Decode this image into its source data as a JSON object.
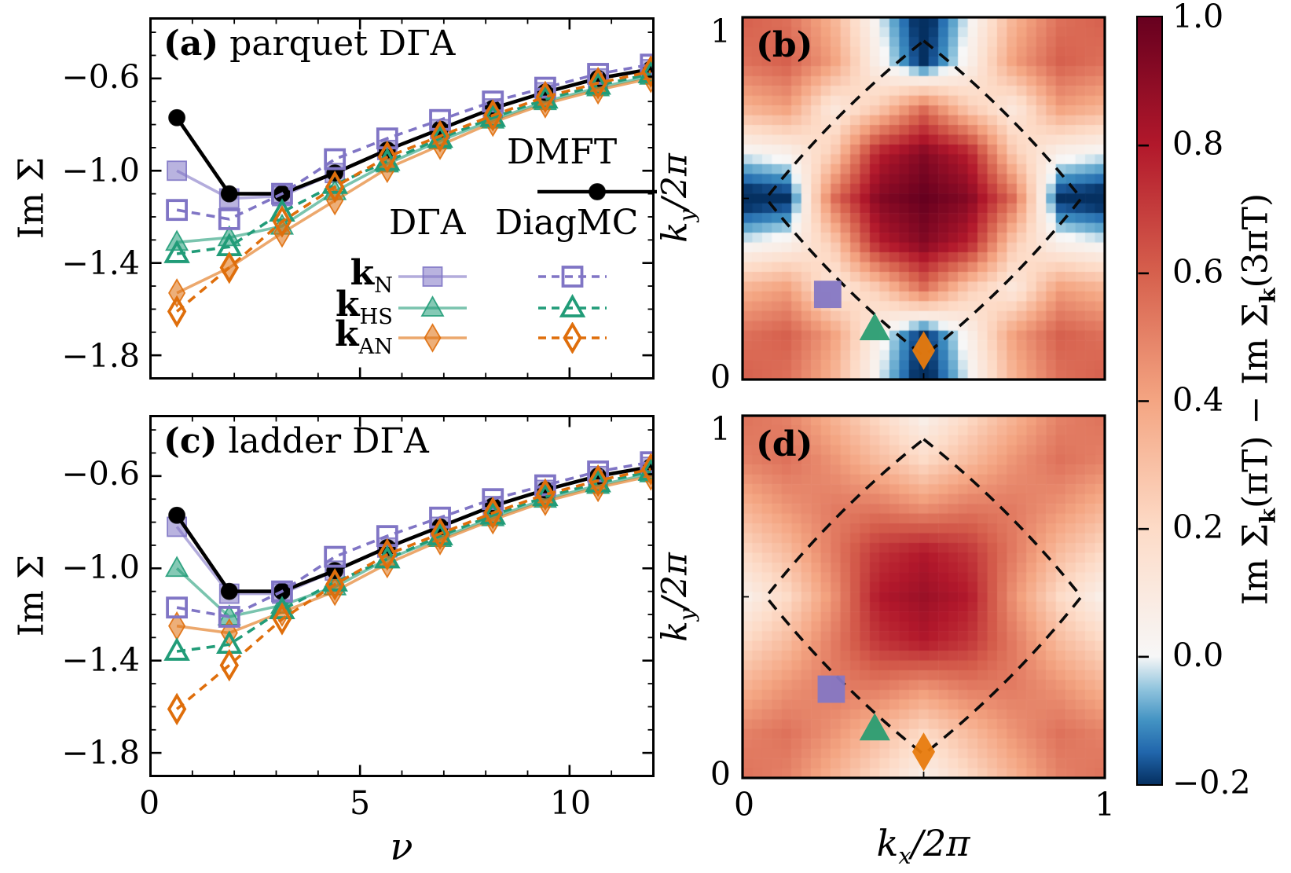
{
  "panel_a": {
    "tag": "(a)",
    "title": "parquet DΓA"
  },
  "panel_b": {
    "tag": "(b)"
  },
  "panel_c": {
    "tag": "(c)",
    "title": "ladder DΓA"
  },
  "panel_d": {
    "tag": "(d)"
  },
  "axes": {
    "im_sigma_label": "Im Σ",
    "nu_label": "ν",
    "k_base": "k",
    "ky_sub": "y",
    "kx_sub": "x",
    "k_denom": "/2π",
    "a_yticks": [
      "−0.6",
      "−1.0",
      "−1.4",
      "−1.8"
    ],
    "c_yticks": [
      "−0.6",
      "−1.0",
      "−1.4",
      "−1.8"
    ],
    "c_xticks": [
      "0",
      "5",
      "10"
    ],
    "b_ytick_top": "1",
    "b_ytick_bottom": "0",
    "d_ytick_top": "1",
    "d_ytick_bottom": "0",
    "d_xtick_left": "0",
    "d_xtick_right": "1"
  },
  "legend": {
    "dmft": "DMFT",
    "dga": "DΓA",
    "diagmc": "DiagMC",
    "rows": [
      {
        "base": "k",
        "sub": "N"
      },
      {
        "base": "k",
        "sub": "HS"
      },
      {
        "base": "k",
        "sub": "AN"
      }
    ]
  },
  "colorbar": {
    "ticks": [
      "1.0",
      "0.8",
      "0.6",
      "0.4",
      "0.2",
      "0.0",
      "−0.2"
    ],
    "tick_values": [
      1.0,
      0.8,
      0.6,
      0.4,
      0.2,
      0.0,
      -0.2
    ],
    "clim": [
      -0.2,
      1.0
    ],
    "label_parts": {
      "l1": "Im Σ",
      "s1": "k",
      "l2": "(πT) − Im Σ",
      "s2": "k",
      "l3": "(3πT)"
    }
  },
  "colors": {
    "purple": "#8075c5",
    "green": "#219c78",
    "orange": "#df6e0b",
    "black": "#000000",
    "marker_purple": "#8577c4",
    "marker_green": "#2a9d72",
    "marker_orange": "#e87b0e"
  },
  "chart_data": [
    {
      "id": "a",
      "type": "line",
      "title": "(a) parquet DΓA",
      "xlabel": "ν",
      "ylabel": "Im Σ",
      "xlim": [
        0,
        12
      ],
      "ylim": [
        -1.9,
        -0.34
      ],
      "xticks": [
        0,
        5,
        10
      ],
      "yticks": [
        -0.6,
        -1.0,
        -1.4,
        -1.8
      ],
      "x": [
        0.63,
        1.88,
        3.14,
        4.4,
        5.65,
        6.91,
        8.17,
        9.42,
        10.68,
        11.94
      ],
      "series": [
        {
          "name": "DMFT",
          "style": "solid",
          "marker": "circle",
          "fill": "filled",
          "color": "#000000",
          "values": [
            -0.77,
            -1.1,
            -1.1,
            -1.01,
            -0.91,
            -0.82,
            -0.73,
            -0.66,
            -0.6,
            -0.56
          ]
        },
        {
          "name": "k_N DΓA",
          "style": "solid",
          "marker": "square",
          "fill": "filled",
          "color": "#8075c5",
          "values": [
            -1.0,
            -1.12,
            -1.11,
            -1.01,
            -0.91,
            -0.82,
            -0.73,
            -0.66,
            -0.6,
            -0.56
          ]
        },
        {
          "name": "k_HS DΓA",
          "style": "solid",
          "marker": "triangle",
          "fill": "filled",
          "color": "#219c78",
          "values": [
            -1.31,
            -1.29,
            -1.24,
            -1.09,
            -0.97,
            -0.87,
            -0.78,
            -0.7,
            -0.64,
            -0.59
          ]
        },
        {
          "name": "k_AN DΓA",
          "style": "solid",
          "marker": "diamond",
          "fill": "filled",
          "color": "#df6e0b",
          "values": [
            -1.53,
            -1.42,
            -1.27,
            -1.13,
            -0.99,
            -0.89,
            -0.79,
            -0.71,
            -0.65,
            -0.6
          ]
        },
        {
          "name": "k_N DiagMC",
          "style": "dashed",
          "marker": "square",
          "fill": "open",
          "color": "#8075c5",
          "values": [
            -1.17,
            -1.21,
            -1.1,
            -0.95,
            -0.86,
            -0.78,
            -0.7,
            -0.64,
            -0.58,
            -0.54
          ]
        },
        {
          "name": "k_HS DiagMC",
          "style": "dashed",
          "marker": "triangle",
          "fill": "open",
          "color": "#219c78",
          "values": [
            -1.36,
            -1.33,
            -1.18,
            -1.06,
            -0.96,
            -0.86,
            -0.77,
            -0.69,
            -0.63,
            -0.58
          ]
        },
        {
          "name": "k_AN DiagMC",
          "style": "dashed",
          "marker": "diamond",
          "fill": "open",
          "color": "#df6e0b",
          "values": [
            -1.61,
            -1.42,
            -1.22,
            -1.07,
            -0.94,
            -0.85,
            -0.76,
            -0.68,
            -0.62,
            -0.57
          ]
        }
      ]
    },
    {
      "id": "c",
      "type": "line",
      "title": "(c) ladder DΓA",
      "xlabel": "ν",
      "ylabel": "Im Σ",
      "xlim": [
        0,
        12
      ],
      "ylim": [
        -1.9,
        -0.34
      ],
      "xticks": [
        0,
        5,
        10
      ],
      "yticks": [
        -0.6,
        -1.0,
        -1.4,
        -1.8
      ],
      "x": [
        0.63,
        1.88,
        3.14,
        4.4,
        5.65,
        6.91,
        8.17,
        9.42,
        10.68,
        11.94
      ],
      "series": [
        {
          "name": "DMFT",
          "style": "solid",
          "marker": "circle",
          "fill": "filled",
          "color": "#000000",
          "values": [
            -0.77,
            -1.1,
            -1.1,
            -1.01,
            -0.91,
            -0.82,
            -0.73,
            -0.66,
            -0.6,
            -0.56
          ]
        },
        {
          "name": "k_N DΓA",
          "style": "solid",
          "marker": "square",
          "fill": "filled",
          "color": "#8075c5",
          "values": [
            -0.82,
            -1.11,
            -1.11,
            -1.01,
            -0.91,
            -0.82,
            -0.73,
            -0.66,
            -0.6,
            -0.56
          ]
        },
        {
          "name": "k_HS DΓA",
          "style": "solid",
          "marker": "triangle",
          "fill": "filled",
          "color": "#219c78",
          "values": [
            -1.0,
            -1.21,
            -1.16,
            -1.08,
            -0.96,
            -0.87,
            -0.78,
            -0.7,
            -0.64,
            -0.59
          ]
        },
        {
          "name": "k_AN DΓA",
          "style": "solid",
          "marker": "diamond",
          "fill": "filled",
          "color": "#df6e0b",
          "values": [
            -1.25,
            -1.28,
            -1.19,
            -1.1,
            -0.98,
            -0.88,
            -0.79,
            -0.71,
            -0.65,
            -0.6
          ]
        },
        {
          "name": "k_N DiagMC",
          "style": "dashed",
          "marker": "square",
          "fill": "open",
          "color": "#8075c5",
          "values": [
            -1.17,
            -1.21,
            -1.1,
            -0.95,
            -0.86,
            -0.78,
            -0.7,
            -0.64,
            -0.58,
            -0.54
          ]
        },
        {
          "name": "k_HS DiagMC",
          "style": "dashed",
          "marker": "triangle",
          "fill": "open",
          "color": "#219c78",
          "values": [
            -1.36,
            -1.33,
            -1.18,
            -1.06,
            -0.96,
            -0.86,
            -0.77,
            -0.69,
            -0.63,
            -0.58
          ]
        },
        {
          "name": "k_AN DiagMC",
          "style": "dashed",
          "marker": "diamond",
          "fill": "open",
          "color": "#df6e0b",
          "values": [
            -1.61,
            -1.42,
            -1.22,
            -1.07,
            -0.94,
            -0.85,
            -0.76,
            -0.68,
            -0.62,
            -0.57
          ]
        }
      ]
    },
    {
      "id": "b",
      "type": "heatmap",
      "xlabel": "k_x/2π",
      "ylabel": "k_y/2π",
      "xlim": [
        0,
        1
      ],
      "ylim": [
        0,
        1
      ],
      "xticks": [
        0,
        1
      ],
      "yticks": [
        0,
        1
      ],
      "colormap": "RdBu_r",
      "clim": [
        -0.2,
        1.0
      ],
      "grid_k": [
        0,
        0.125,
        0.25,
        0.375,
        0.5,
        0.625,
        0.75,
        0.875,
        1
      ],
      "values": [
        [
          0.6,
          0.55,
          0.35,
          0.0,
          -0.25,
          0.0,
          0.35,
          0.55,
          0.6
        ],
        [
          0.55,
          0.6,
          0.42,
          0.05,
          -0.22,
          0.05,
          0.42,
          0.6,
          0.55
        ],
        [
          0.35,
          0.42,
          0.1,
          0.25,
          0.55,
          0.25,
          0.1,
          0.42,
          0.35
        ],
        [
          0.0,
          0.05,
          0.25,
          0.78,
          0.92,
          0.78,
          0.25,
          0.05,
          0.0
        ],
        [
          -0.25,
          -0.22,
          0.55,
          0.92,
          1.0,
          0.92,
          0.55,
          -0.22,
          -0.25
        ],
        [
          0.0,
          0.05,
          0.25,
          0.78,
          0.92,
          0.78,
          0.25,
          0.05,
          0.0
        ],
        [
          0.35,
          0.42,
          0.1,
          0.25,
          0.55,
          0.25,
          0.1,
          0.42,
          0.35
        ],
        [
          0.55,
          0.6,
          0.42,
          0.05,
          -0.22,
          0.05,
          0.42,
          0.6,
          0.55
        ],
        [
          0.6,
          0.55,
          0.35,
          0.0,
          -0.25,
          0.0,
          0.35,
          0.55,
          0.6
        ]
      ],
      "fermi_surface": {
        "style": "dashed",
        "apex": [
          [
            0.5,
            0.935
          ],
          [
            0.935,
            0.5
          ],
          [
            0.5,
            0.065
          ],
          [
            0.065,
            0.5
          ]
        ],
        "ctrl": [
          [
            0.7425,
            0.7425
          ],
          [
            0.7425,
            0.2575
          ],
          [
            0.2575,
            0.2575
          ],
          [
            0.2575,
            0.7425
          ]
        ]
      },
      "k_points": [
        {
          "name": "k_N",
          "marker": "square",
          "x": 0.235,
          "y": 0.235,
          "color": "#8577c4"
        },
        {
          "name": "k_HS",
          "marker": "triangle",
          "x": 0.365,
          "y": 0.14,
          "color": "#2a9d72"
        },
        {
          "name": "k_AN",
          "marker": "diamond",
          "x": 0.5,
          "y": 0.08,
          "color": "#e87b0e"
        }
      ]
    },
    {
      "id": "d",
      "type": "heatmap",
      "xlabel": "k_x/2π",
      "ylabel": "k_y/2π",
      "xlim": [
        0,
        1
      ],
      "ylim": [
        0,
        1
      ],
      "xticks": [
        0,
        1
      ],
      "yticks": [
        0,
        1
      ],
      "colormap": "RdBu_r",
      "clim": [
        -0.2,
        1.0
      ],
      "grid_k": [
        0,
        0.125,
        0.25,
        0.375,
        0.5,
        0.625,
        0.75,
        0.875,
        1
      ],
      "values": [
        [
          0.55,
          0.5,
          0.35,
          0.2,
          0.05,
          0.2,
          0.35,
          0.5,
          0.55
        ],
        [
          0.5,
          0.55,
          0.45,
          0.32,
          0.2,
          0.32,
          0.45,
          0.55,
          0.5
        ],
        [
          0.35,
          0.45,
          0.52,
          0.52,
          0.45,
          0.52,
          0.52,
          0.45,
          0.35
        ],
        [
          0.2,
          0.32,
          0.52,
          0.72,
          0.8,
          0.72,
          0.52,
          0.32,
          0.2
        ],
        [
          0.05,
          0.2,
          0.45,
          0.8,
          0.86,
          0.8,
          0.45,
          0.2,
          0.05
        ],
        [
          0.2,
          0.32,
          0.52,
          0.72,
          0.8,
          0.72,
          0.52,
          0.32,
          0.2
        ],
        [
          0.35,
          0.45,
          0.52,
          0.52,
          0.45,
          0.52,
          0.52,
          0.45,
          0.35
        ],
        [
          0.5,
          0.55,
          0.45,
          0.32,
          0.2,
          0.32,
          0.45,
          0.55,
          0.5
        ],
        [
          0.55,
          0.5,
          0.35,
          0.2,
          0.05,
          0.2,
          0.35,
          0.5,
          0.55
        ]
      ],
      "fermi_surface": {
        "style": "dashed",
        "apex": [
          [
            0.5,
            0.935
          ],
          [
            0.935,
            0.5
          ],
          [
            0.5,
            0.065
          ],
          [
            0.065,
            0.5
          ]
        ],
        "ctrl": [
          [
            0.7425,
            0.7425
          ],
          [
            0.7425,
            0.2575
          ],
          [
            0.2575,
            0.2575
          ],
          [
            0.2575,
            0.7425
          ]
        ]
      },
      "k_points": [
        {
          "name": "k_N",
          "marker": "square",
          "x": 0.245,
          "y": 0.245,
          "color": "#8577c4"
        },
        {
          "name": "k_HS",
          "marker": "triangle",
          "x": 0.365,
          "y": 0.135,
          "color": "#2a9d72"
        },
        {
          "name": "k_AN",
          "marker": "diamond",
          "x": 0.5,
          "y": 0.072,
          "color": "#e87b0e"
        }
      ]
    }
  ]
}
